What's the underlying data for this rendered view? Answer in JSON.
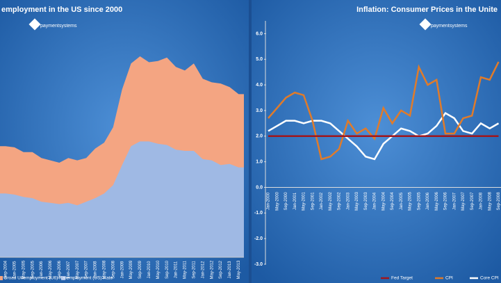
{
  "chart_data": [
    {
      "type": "area",
      "title": "employment  in the US since 2000",
      "logo": "paymentsystems",
      "categories": [
        "Sep-2004",
        "Jan-2005",
        "May-2005",
        "Sep-2005",
        "Jan-2006",
        "May-2006",
        "Sep-2006",
        "Jan-2007",
        "May-2007",
        "Sep-2007",
        "Jan-2008",
        "May-2008",
        "Sep-2008",
        "Jan-2009",
        "May-2009",
        "Sep-2009",
        "Jan-2010",
        "May-2010",
        "Sep-2010",
        "Jan-2011",
        "May-2011",
        "Sep-2011",
        "Jan-2012",
        "May-2012",
        "Sep-2012",
        "Jan-2013",
        "May-2013"
      ],
      "series": [
        {
          "name": "Broad Unemployment (U6) Rate",
          "color": "#f4a582",
          "values": [
            9.4,
            9.3,
            8.9,
            8.9,
            8.4,
            8.2,
            8.0,
            8.4,
            8.2,
            8.4,
            9.2,
            9.7,
            11.0,
            14.2,
            16.4,
            17.0,
            16.5,
            16.6,
            16.9,
            16.1,
            15.8,
            16.4,
            15.1,
            14.8,
            14.7,
            14.4,
            13.8
          ]
        },
        {
          "name": "employment (US) Rate",
          "color": "#9fb9e4",
          "values": [
            5.4,
            5.3,
            5.1,
            5.0,
            4.7,
            4.6,
            4.5,
            4.6,
            4.4,
            4.7,
            5.0,
            5.4,
            6.1,
            7.8,
            9.4,
            9.8,
            9.8,
            9.6,
            9.5,
            9.1,
            9.0,
            9.0,
            8.3,
            8.2,
            7.8,
            7.9,
            7.6
          ]
        }
      ],
      "ylim": [
        0,
        20
      ]
    },
    {
      "type": "line",
      "title": "Inflation: Consumer Prices in the Unite",
      "logo": "paymentsystems",
      "categories": [
        "Jan-2000",
        "May-2000",
        "Sep-2000",
        "Jan-2001",
        "May-2001",
        "Sep-2001",
        "Jan-2002",
        "May-2002",
        "Sep-2002",
        "Jan-2003",
        "May-2003",
        "Sep-2003",
        "Jan-2004",
        "May-2004",
        "Sep-2004",
        "Jan-2005",
        "May-2005",
        "Sep-2005",
        "Jan-2006",
        "May-2006",
        "Sep-2006",
        "Jan-2007",
        "May-2007",
        "Sep-2007",
        "Jan-2008",
        "May-2008",
        "Sep-2008"
      ],
      "series": [
        {
          "name": "Core CPI",
          "color": "#ffffff",
          "values": [
            2.2,
            2.4,
            2.6,
            2.6,
            2.5,
            2.6,
            2.6,
            2.5,
            2.2,
            1.9,
            1.6,
            1.2,
            1.1,
            1.7,
            2.0,
            2.3,
            2.2,
            2.0,
            2.1,
            2.4,
            2.9,
            2.7,
            2.2,
            2.1,
            2.5,
            2.3,
            2.5
          ]
        },
        {
          "name": "CPI",
          "color": "#e07b2a",
          "values": [
            2.7,
            3.1,
            3.5,
            3.7,
            3.6,
            2.6,
            1.1,
            1.2,
            1.5,
            2.6,
            2.1,
            2.3,
            1.9,
            3.1,
            2.5,
            3.0,
            2.8,
            4.7,
            4.0,
            4.2,
            2.1,
            2.1,
            2.7,
            2.8,
            4.3,
            4.2,
            4.9
          ]
        },
        {
          "name": "Fed Target",
          "color": "#a0161c",
          "values": [
            2,
            2,
            2,
            2,
            2,
            2,
            2,
            2,
            2,
            2,
            2,
            2,
            2,
            2,
            2,
            2,
            2,
            2,
            2,
            2,
            2,
            2,
            2,
            2,
            2,
            2,
            2
          ]
        }
      ],
      "ylim": [
        -3,
        6.5
      ],
      "yticks": [
        {
          "value": 6,
          "label": "6.0"
        },
        {
          "value": 5,
          "label": "5.0"
        },
        {
          "value": 4,
          "label": "4.0"
        },
        {
          "value": 3,
          "label": "3.0"
        },
        {
          "value": 2,
          "label": "2.0"
        },
        {
          "value": 1,
          "label": "1.0"
        },
        {
          "value": 0,
          "label": "0.0"
        },
        {
          "value": -1,
          "label": "-1.0"
        },
        {
          "value": -2,
          "label": "-2.0"
        },
        {
          "value": -3,
          "label": "-3.0"
        }
      ]
    }
  ]
}
